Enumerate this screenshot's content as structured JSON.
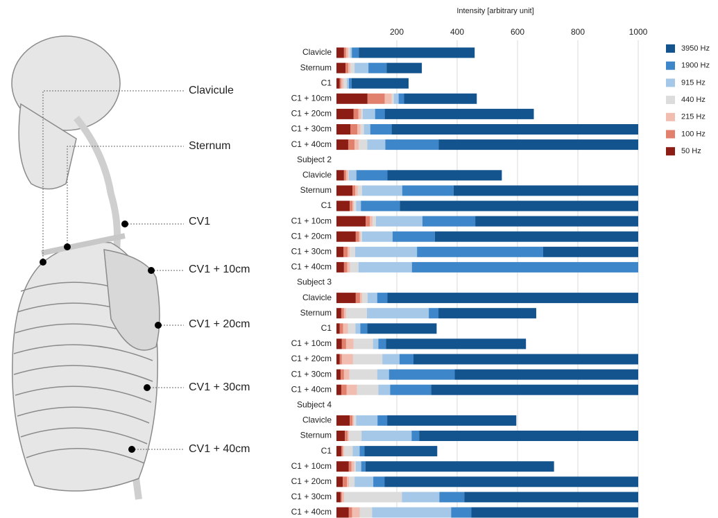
{
  "illustration": {
    "labels": [
      "Clavicule",
      "Sternum",
      "CV1",
      "CV1 + 10cm",
      "CV1 + 20cm",
      "CV1 + 30cm",
      "CV1 + 40cm"
    ]
  },
  "chart_data": {
    "type": "stacked-barh",
    "x_label": "Intensity [arbitrary unit]",
    "xlim": [
      0,
      1000
    ],
    "xticks": [
      200,
      400,
      600,
      800,
      1000
    ],
    "grid": true,
    "legend": "upper right",
    "categories": [
      "Clavicle",
      "Sternum",
      "C1",
      "C1 + 10cm",
      "C1 + 20cm",
      "C1 + 30cm",
      "C1 + 40cm",
      "Subject 2",
      "Clavicle",
      "Sternum",
      "C1",
      "C1 + 10cm",
      "C1 + 20cm",
      "C1 + 30cm",
      "C1 + 40cm",
      "Subject 3",
      "Clavicle",
      "Sternum",
      "C1",
      "C1 + 10cm",
      "C1 + 20cm",
      "C1 + 30cm",
      "C1 + 40cm",
      "Subject 4",
      "Clavicle",
      "Sternum",
      "C1",
      "C1 + 10cm",
      "C1 + 20cm",
      "C1 + 30cm",
      "C1 + 40cm"
    ],
    "series": [
      {
        "name": "50 Hz",
        "color": "#8c1d15",
        "values": [
          25,
          30,
          11,
          103,
          57,
          46,
          39,
          null,
          25,
          53,
          44,
          97,
          64,
          23,
          25,
          null,
          64,
          16,
          11,
          18,
          11,
          14,
          16,
          null,
          44,
          28,
          16,
          41,
          21,
          14,
          41
        ]
      },
      {
        "name": "100 Hz",
        "color": "#e0806d",
        "values": [
          7,
          9,
          5,
          57,
          16,
          23,
          21,
          null,
          7,
          9,
          9,
          14,
          11,
          14,
          11,
          null,
          14,
          9,
          11,
          14,
          7,
          11,
          18,
          null,
          9,
          9,
          5,
          9,
          14,
          5,
          11
        ]
      },
      {
        "name": "215 Hz",
        "color": "#f2bdb1",
        "values": [
          7,
          7,
          7,
          23,
          9,
          11,
          14,
          null,
          7,
          9,
          5,
          9,
          5,
          7,
          9,
          null,
          7,
          7,
          16,
          25,
          37,
          18,
          34,
          null,
          5,
          5,
          5,
          9,
          7,
          7,
          25
        ]
      },
      {
        "name": "440 Hz",
        "color": "#dcdcdc",
        "values": [
          7,
          14,
          11,
          7,
          5,
          11,
          28,
          null,
          2,
          14,
          7,
          11,
          5,
          18,
          28,
          null,
          18,
          69,
          25,
          64,
          97,
          92,
          71,
          null,
          7,
          41,
          28,
          5,
          18,
          191,
          41
        ]
      },
      {
        "name": "915 Hz",
        "color": "#a6c8e8",
        "values": [
          5,
          46,
          7,
          16,
          41,
          21,
          60,
          null,
          25,
          133,
          16,
          154,
          101,
          205,
          177,
          null,
          32,
          205,
          16,
          18,
          57,
          39,
          39,
          null,
          71,
          166,
          23,
          18,
          62,
          124,
          262
        ]
      },
      {
        "name": "1900 Hz",
        "color": "#3d86c9",
        "values": [
          23,
          60,
          9,
          18,
          32,
          71,
          177,
          null,
          103,
          170,
          129,
          175,
          140,
          418,
          750,
          null,
          34,
          32,
          23,
          25,
          46,
          218,
          136,
          null,
          32,
          25,
          16,
          14,
          37,
          83,
          67
        ]
      },
      {
        "name": "3950 Hz",
        "color": "#13548f",
        "values": [
          384,
          117,
          189,
          241,
          494,
          817,
          661,
          null,
          379,
          612,
          790,
          540,
          674,
          315,
          0,
          null,
          831,
          324,
          230,
          464,
          745,
          608,
          686,
          null,
          428,
          726,
          241,
          625,
          841,
          576,
          553
        ]
      }
    ]
  }
}
